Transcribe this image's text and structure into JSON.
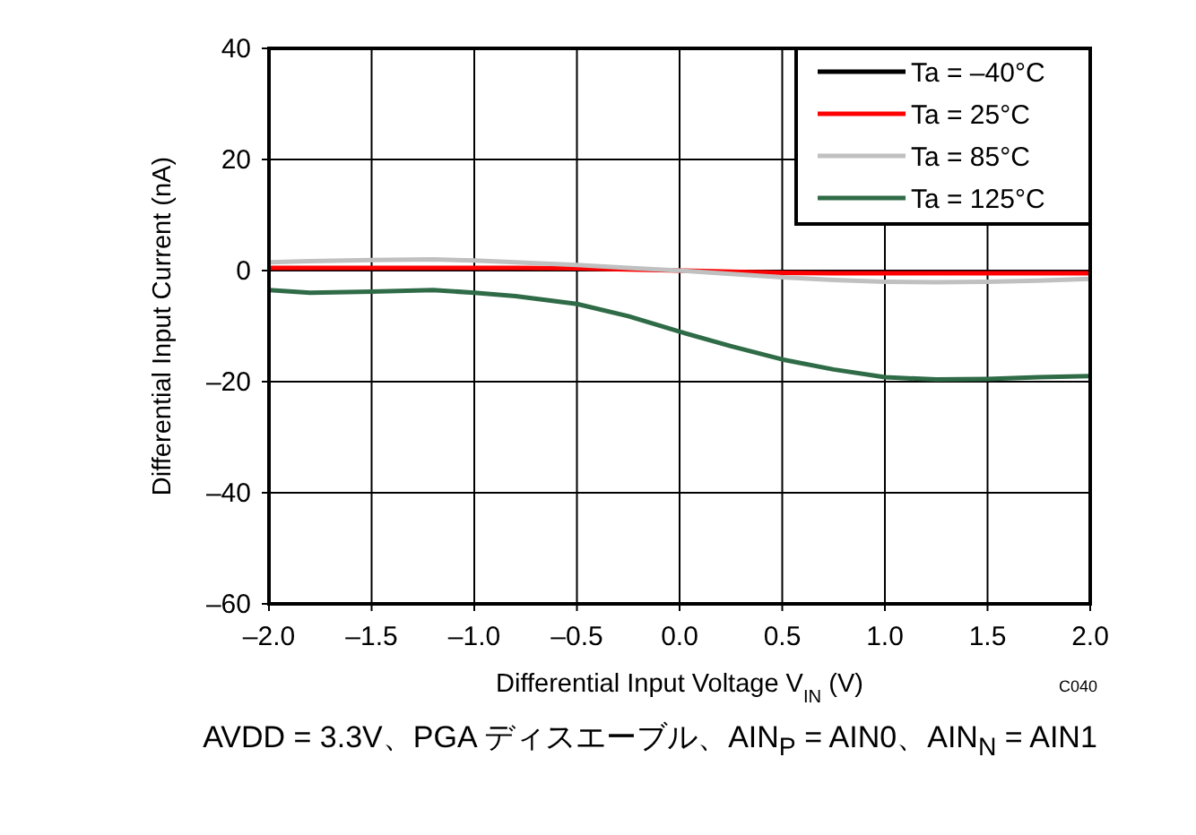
{
  "chart_data": {
    "type": "line",
    "xlabel": "Differential  Input Voltage V$_{IN}$ (V)",
    "ylabel": "Differential Input Current (nA)",
    "annotations": [
      "C040",
      "AVDD = 3.3V、PGA ディスエーブル、AIN$_{P}$ = AIN0、AIN$_{N}$ = AIN1"
    ],
    "x": [
      -2.0,
      -1.8,
      -1.5,
      -1.2,
      -1.0,
      -0.8,
      -0.5,
      -0.25,
      0.0,
      0.25,
      0.5,
      0.75,
      1.0,
      1.25,
      1.5,
      1.75,
      2.0
    ],
    "series": [
      {
        "name": "Ta = –40°C",
        "color": "#000000",
        "values": [
          null,
          null,
          null,
          null,
          null,
          null,
          null,
          null,
          null,
          null,
          null,
          null,
          null,
          null,
          null,
          null,
          null
        ]
      },
      {
        "name": "Ta = 25°C",
        "color": "#ff0000",
        "values": [
          0.5,
          0.5,
          0.5,
          0.5,
          0.5,
          0.5,
          0.4,
          0.2,
          0.0,
          -0.2,
          -0.4,
          -0.5,
          -0.5,
          -0.5,
          -0.5,
          -0.5,
          -0.5
        ]
      },
      {
        "name": "Ta = 85°C",
        "color": "#c0c0c0",
        "values": [
          1.5,
          1.7,
          1.9,
          2.0,
          1.8,
          1.5,
          1.0,
          0.5,
          0.0,
          -0.6,
          -1.2,
          -1.7,
          -2.0,
          -2.1,
          -2.0,
          -1.8,
          -1.5
        ]
      },
      {
        "name": "Ta = 125°C",
        "color": "#2e6b46",
        "values": [
          -3.5,
          -4.0,
          -3.8,
          -3.5,
          -4.0,
          -4.6,
          -6.0,
          -8.2,
          -11.0,
          -13.6,
          -16.0,
          -17.8,
          -19.2,
          -19.6,
          -19.5,
          -19.2,
          -19.0
        ]
      }
    ],
    "xlim": [
      -2.0,
      2.0
    ],
    "xticks": [
      {
        "value": -2.0,
        "label": "–2.0"
      },
      {
        "value": -1.5,
        "label": "–1.5"
      },
      {
        "value": -1.0,
        "label": "–1.0"
      },
      {
        "value": -0.5,
        "label": "–0.5"
      },
      {
        "value": 0.0,
        "label": "0.0"
      },
      {
        "value": 0.5,
        "label": "0.5"
      },
      {
        "value": 1.0,
        "label": "1.0"
      },
      {
        "value": 1.5,
        "label": "1.5"
      },
      {
        "value": 2.0,
        "label": "2.0"
      }
    ],
    "ylim": [
      -60,
      40
    ],
    "yticks": [
      {
        "value": -60,
        "label": "–60"
      },
      {
        "value": -40,
        "label": "–40"
      },
      {
        "value": -20,
        "label": "–20"
      },
      0,
      20,
      40
    ],
    "grid": true,
    "legend": "top right"
  }
}
